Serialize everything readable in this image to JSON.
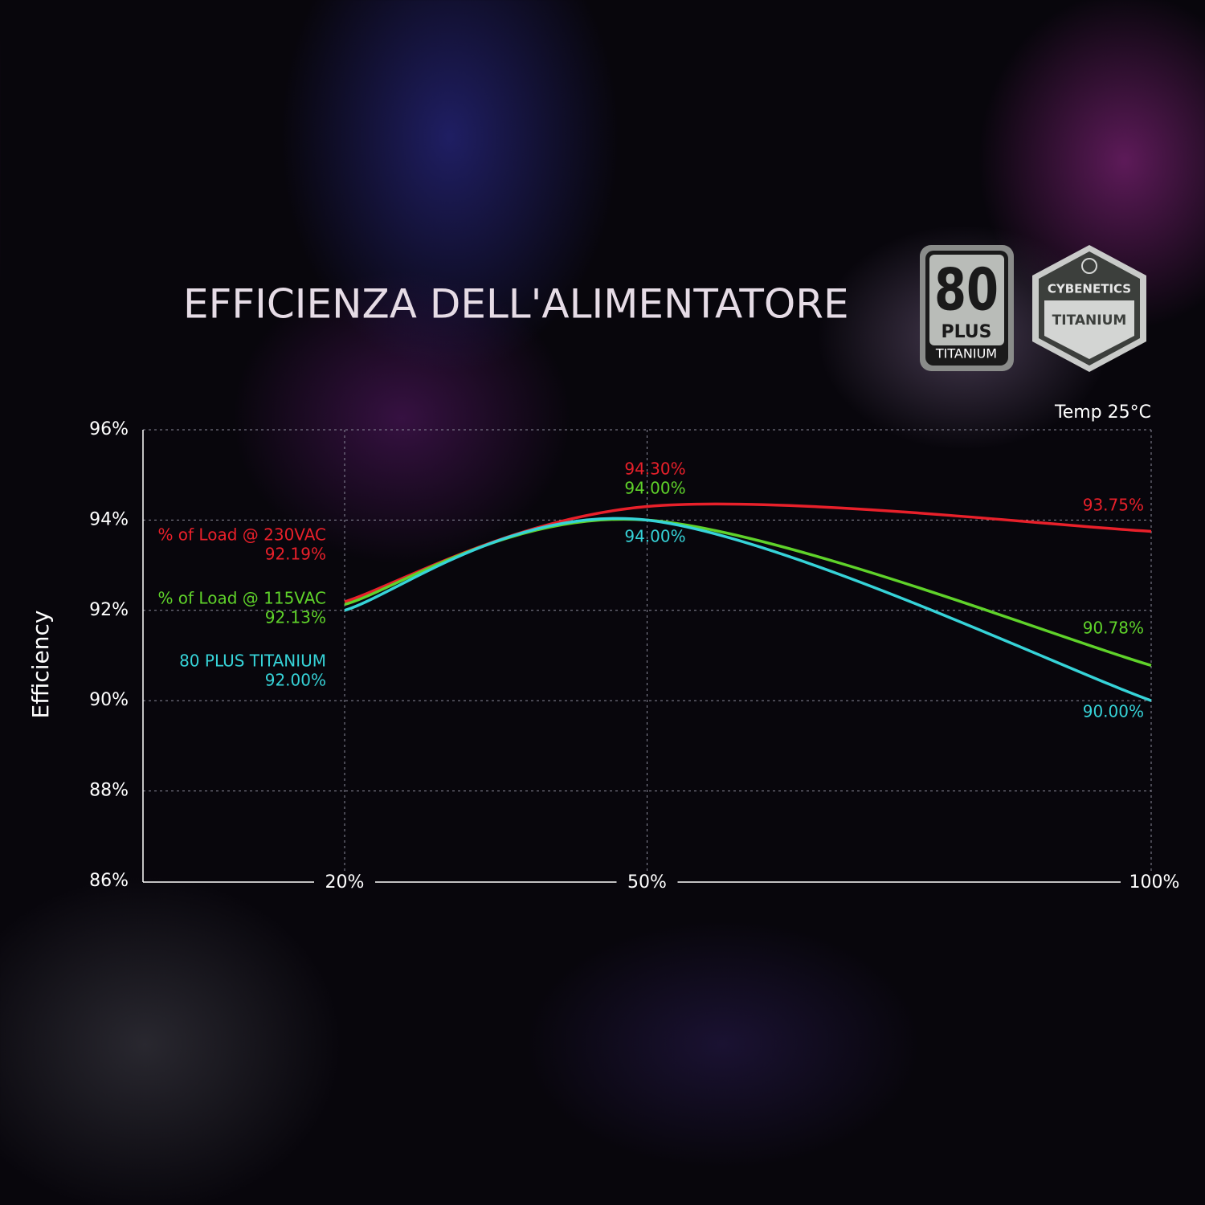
{
  "chart_data": {
    "type": "line",
    "title": "EFFICIENZA DELL'ALIMENTATORE",
    "ylabel": "Efficiency",
    "annotation": "Temp 25°C",
    "x": [
      20,
      50,
      100
    ],
    "xlim": [
      0,
      100
    ],
    "xticks": [
      {
        "value": 20,
        "label": "20%"
      },
      {
        "value": 50,
        "label": "50%"
      },
      {
        "value": 100,
        "label": "100%"
      }
    ],
    "ylim": [
      86,
      96
    ],
    "yticks": [
      {
        "value": 86,
        "label": "86%"
      },
      {
        "value": 88,
        "label": "88%"
      },
      {
        "value": 90,
        "label": "90%"
      },
      {
        "value": 92,
        "label": "92%"
      },
      {
        "value": 94,
        "label": "94%"
      },
      {
        "value": 96,
        "label": "96%"
      }
    ],
    "grid": true,
    "series": [
      {
        "name": "% of Load @ 230VAC",
        "color": "#e8202a",
        "values": [
          92.19,
          94.3,
          93.75
        ],
        "value_labels": [
          "92.19%",
          "94.30%",
          "93.75%"
        ]
      },
      {
        "name": "% of Load @ 115VAC",
        "color": "#5fd22a",
        "values": [
          92.13,
          94.0,
          90.78
        ],
        "value_labels": [
          "92.13%",
          "94.00%",
          "90.78%"
        ]
      },
      {
        "name": "80 PLUS TITANIUM",
        "color": "#36d3d8",
        "values": [
          92.0,
          94.0,
          90.0
        ],
        "value_labels": [
          "92.00%",
          "94.00%",
          "90.00%"
        ]
      }
    ]
  },
  "badges": {
    "plus": {
      "number": "80",
      "word": "PLUS",
      "level": "TITANIUM"
    },
    "cybenetics": {
      "name": "CYBENETICS",
      "level": "TITANIUM"
    }
  }
}
